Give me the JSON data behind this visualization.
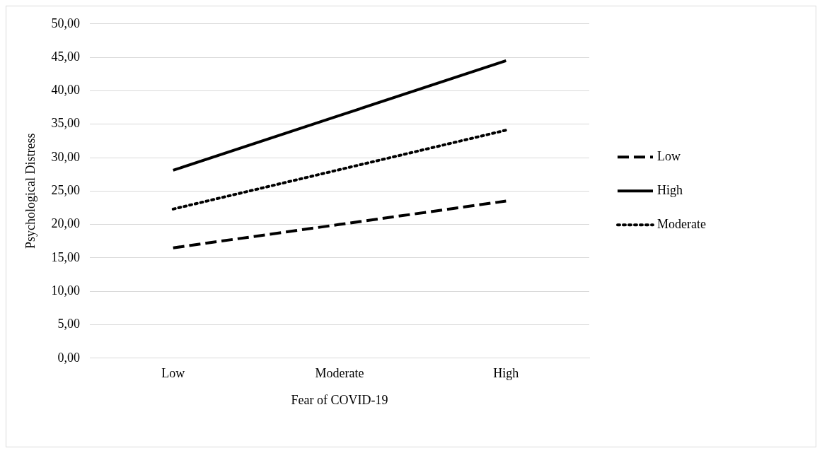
{
  "chart_data": {
    "type": "line",
    "xlabel": "Fear of COVID-19",
    "ylabel": "Psychological Distress",
    "categories": [
      "Low",
      "Moderate",
      "High"
    ],
    "series": [
      {
        "name": "Low",
        "color": "#000000",
        "line_style": "dashed",
        "values": [
          16.5,
          20.0,
          23.5
        ]
      },
      {
        "name": "High",
        "color": "#000000",
        "line_style": "solid",
        "values": [
          28.1,
          36.3,
          44.5
        ]
      },
      {
        "name": "Moderate",
        "color": "#000000",
        "line_style": "dotted",
        "values": [
          22.3,
          28.2,
          34.1
        ]
      }
    ],
    "ylim": [
      0,
      50
    ],
    "yticks": [
      {
        "value": 0,
        "label": "0,00"
      },
      {
        "value": 5,
        "label": "5,00"
      },
      {
        "value": 10,
        "label": "10,00"
      },
      {
        "value": 15,
        "label": "15,00"
      },
      {
        "value": 20,
        "label": "20,00"
      },
      {
        "value": 25,
        "label": "25,00"
      },
      {
        "value": 30,
        "label": "30,00"
      },
      {
        "value": 35,
        "label": "35,00"
      },
      {
        "value": 40,
        "label": "40,00"
      },
      {
        "value": 45,
        "label": "45,00"
      },
      {
        "value": 50,
        "label": "50,00"
      }
    ],
    "grid": "y",
    "legend": "right",
    "marker": "none"
  }
}
